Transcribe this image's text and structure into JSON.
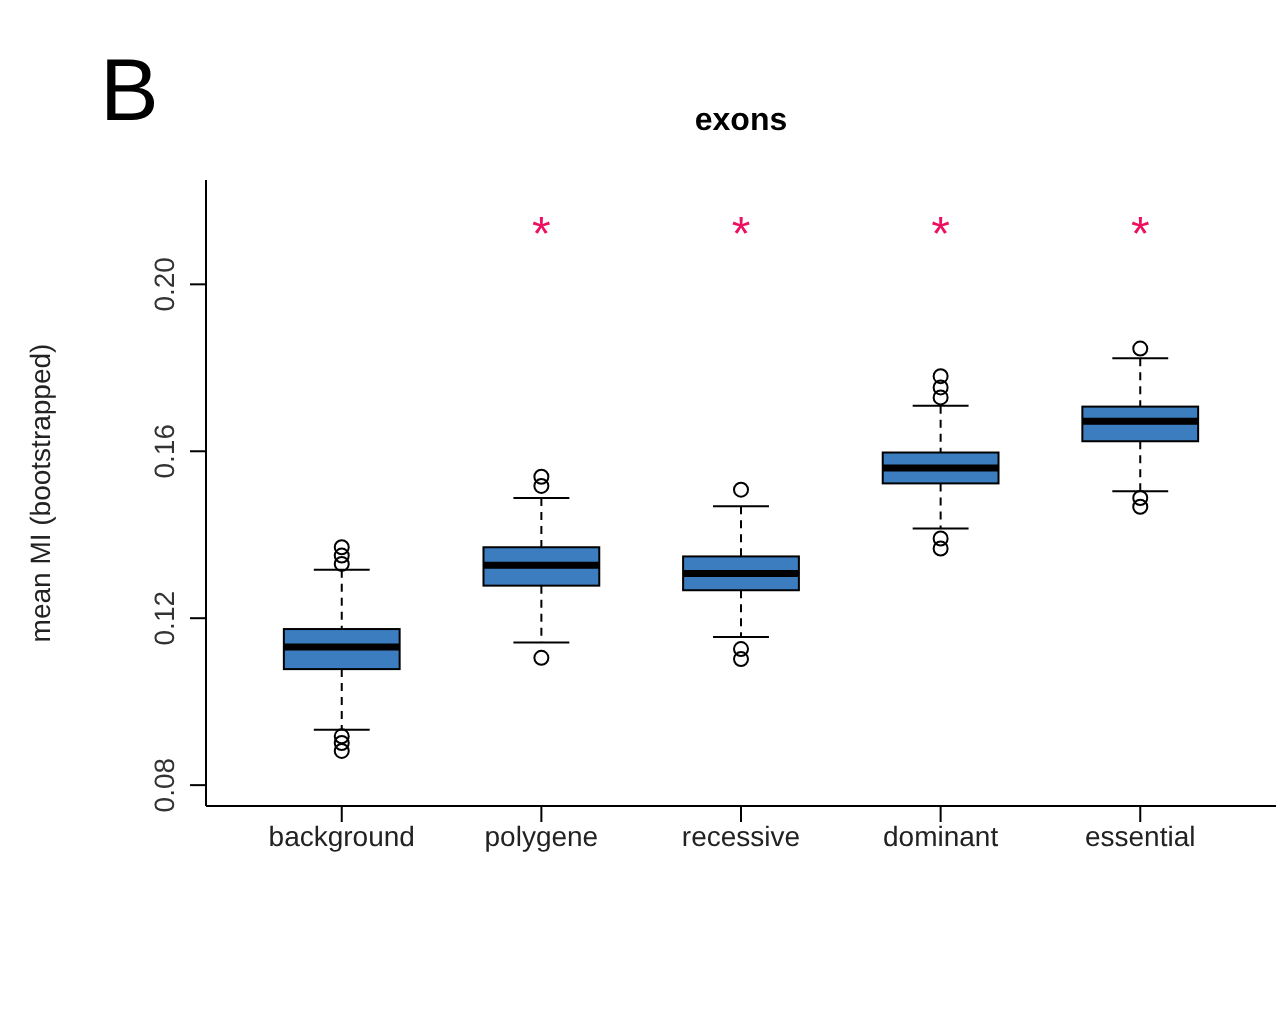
{
  "chart_data": {
    "type": "box",
    "title": "exons",
    "ylabel": "mean MI (bootstrapped)",
    "categories": [
      "background",
      "polygene",
      "recessive",
      "dominant",
      "essential"
    ],
    "color": "#3b7dbf",
    "ylim": [
      0.075,
      0.225
    ],
    "yticks": [
      0.08,
      0.12,
      0.16,
      {
        "value": 0.2,
        "label": "0.20"
      }
    ],
    "grid": false,
    "boxes": [
      {
        "low": 0.0933,
        "q1": 0.1078,
        "median": 0.1131,
        "q3": 0.1174,
        "high": 0.1316,
        "outliers": [
          0.137,
          0.135,
          0.133,
          0.0917,
          0.0901,
          0.0882
        ]
      },
      {
        "low": 0.1142,
        "q1": 0.1278,
        "median": 0.1327,
        "q3": 0.137,
        "high": 0.1488,
        "outliers": [
          0.1539,
          0.1517,
          0.1105
        ]
      },
      {
        "low": 0.1155,
        "q1": 0.1267,
        "median": 0.1307,
        "q3": 0.1348,
        "high": 0.1468,
        "outliers": [
          0.1508,
          0.1126,
          0.1102
        ]
      },
      {
        "low": 0.1415,
        "q1": 0.1523,
        "median": 0.156,
        "q3": 0.1597,
        "high": 0.1709,
        "outliers": [
          0.178,
          0.1753,
          0.1729,
          0.1391,
          0.1367
        ]
      },
      {
        "low": 0.1504,
        "q1": 0.1624,
        "median": 0.1672,
        "q3": 0.1707,
        "high": 0.1823,
        "outliers": [
          0.1846,
          0.1488,
          0.1467
        ]
      }
    ],
    "annotations": [
      "B",
      "*",
      "*",
      "*",
      "*"
    ]
  }
}
